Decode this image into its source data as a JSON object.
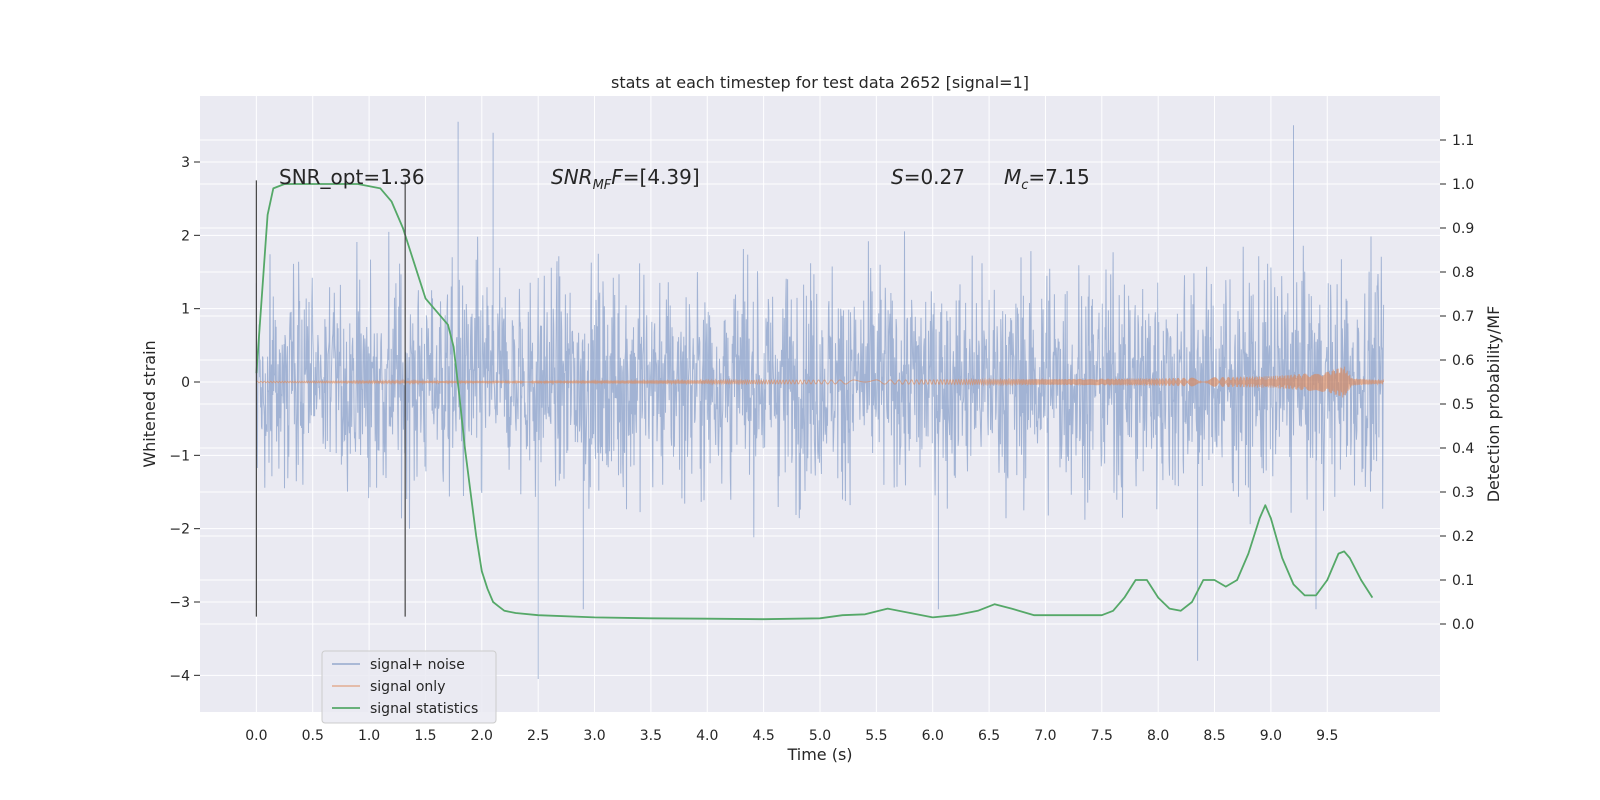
{
  "chart_data": {
    "type": "line",
    "title": "stats at each timestep for test data 2652 [signal=1]",
    "xlabel": "Time (s)",
    "ylabel_left": "Whitened strain",
    "ylabel_right": "Detection probability/MF",
    "xlim": [
      -0.5,
      10.5
    ],
    "ylim_left": [
      -4.5,
      3.9
    ],
    "ylim_right": [
      -0.2,
      1.2
    ],
    "x_ticks": [
      "0.0",
      "0.5",
      "1.0",
      "1.5",
      "2.0",
      "2.5",
      "3.0",
      "3.5",
      "4.0",
      "4.5",
      "5.0",
      "5.5",
      "6.0",
      "6.5",
      "7.0",
      "7.5",
      "8.0",
      "8.5",
      "9.0",
      "9.5"
    ],
    "y_ticks_left": [
      "−4",
      "−3",
      "−2",
      "−1",
      "0",
      "1",
      "2",
      "3"
    ],
    "y_ticks_right": [
      "0.0",
      "0.1",
      "0.2",
      "0.3",
      "0.4",
      "0.5",
      "0.6",
      "0.7",
      "0.8",
      "0.9",
      "1.0",
      "1.1"
    ],
    "grid": true,
    "legend_position": "lower-left",
    "annotations": {
      "snr_opt": "SNR_opt=1.36",
      "snr_mf_main": "SNR",
      "snr_mf_sub": "MF",
      "snr_mf_rest": "=[4.39]",
      "s_main": "S",
      "s_rest": "=0.27",
      "mc_main": "M",
      "mc_sub": "c",
      "mc_rest": "=7.15"
    },
    "vlines": [
      0.0,
      1.32
    ],
    "series": [
      {
        "name": "signal+ noise",
        "color": "#4c72b0",
        "axis": "left",
        "x_range": [
          0.0,
          10.0
        ],
        "core_amplitude": 1.6,
        "spikes": [
          [
            1.79,
            3.55
          ],
          [
            2.1,
            3.4
          ],
          [
            9.2,
            3.5
          ],
          [
            2.5,
            -4.05
          ],
          [
            8.35,
            -3.8
          ],
          [
            9.4,
            -3.1
          ],
          [
            2.9,
            -3.1
          ],
          [
            6.05,
            -3.1
          ]
        ]
      },
      {
        "name": "signal only",
        "color": "#dd8452",
        "axis": "left",
        "x_range": [
          0.0,
          10.0
        ],
        "envelope": [
          [
            0.0,
            0.01
          ],
          [
            6.0,
            0.03
          ],
          [
            8.0,
            0.05
          ],
          [
            9.0,
            0.08
          ],
          [
            9.5,
            0.14
          ],
          [
            9.65,
            0.22
          ],
          [
            9.72,
            0.05
          ],
          [
            10.0,
            0.02
          ]
        ]
      },
      {
        "name": "signal statistics",
        "color": "#55a868",
        "axis": "right",
        "x": [
          0.0,
          0.1,
          0.15,
          0.25,
          0.5,
          0.9,
          1.1,
          1.2,
          1.3,
          1.4,
          1.5,
          1.6,
          1.7,
          1.75,
          1.8,
          1.85,
          1.9,
          1.95,
          2.0,
          2.05,
          2.1,
          2.15,
          2.2,
          2.3,
          2.5,
          3.0,
          3.5,
          4.0,
          4.5,
          5.0,
          5.2,
          5.4,
          5.6,
          5.8,
          6.0,
          6.2,
          6.4,
          6.55,
          6.7,
          6.9,
          7.2,
          7.5,
          7.6,
          7.7,
          7.8,
          7.9,
          8.0,
          8.1,
          8.2,
          8.3,
          8.4,
          8.5,
          8.6,
          8.7,
          8.8,
          8.9,
          8.95,
          9.0,
          9.1,
          9.2,
          9.3,
          9.4,
          9.5,
          9.6,
          9.65,
          9.7,
          9.8,
          9.9
        ],
        "values": [
          0.57,
          0.93,
          0.99,
          1.0,
          1.0,
          1.0,
          0.99,
          0.96,
          0.9,
          0.82,
          0.74,
          0.71,
          0.68,
          0.63,
          0.52,
          0.4,
          0.3,
          0.2,
          0.12,
          0.08,
          0.05,
          0.04,
          0.03,
          0.025,
          0.02,
          0.015,
          0.013,
          0.012,
          0.011,
          0.013,
          0.02,
          0.022,
          0.035,
          0.025,
          0.015,
          0.02,
          0.03,
          0.045,
          0.035,
          0.02,
          0.02,
          0.02,
          0.03,
          0.06,
          0.1,
          0.1,
          0.06,
          0.035,
          0.03,
          0.05,
          0.1,
          0.1,
          0.085,
          0.1,
          0.16,
          0.24,
          0.27,
          0.24,
          0.15,
          0.09,
          0.065,
          0.065,
          0.1,
          0.16,
          0.165,
          0.15,
          0.1,
          0.06
        ]
      }
    ]
  }
}
